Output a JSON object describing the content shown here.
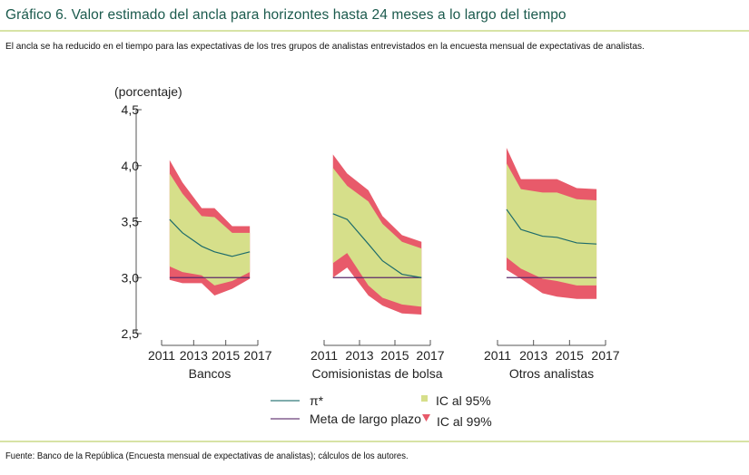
{
  "header": {
    "title": "Gráfico 6. Valor estimado del ancla para horizontes hasta 24 meses a lo largo del tiempo",
    "subtitle": "El ancla se ha reducido en el tiempo para las expectativas de los tres grupos de analistas entrevistados en la encuesta mensual de expectativas de analistas."
  },
  "footer": {
    "source": "Fuente: Banco de la República (Encuesta mensual de expectativas de analistas); cálculos de los autores."
  },
  "colors": {
    "ic95": "#d6df8a",
    "ic99": "#e85a6a",
    "pi_star": "#1d6b6b",
    "meta": "#5a2a6a",
    "axis": "#555555",
    "title": "#1b5a4d",
    "rule": "#d7e3a5"
  },
  "chart_data": {
    "type": "area",
    "ylabel": "(porcentaje)",
    "ylim": [
      2.5,
      4.5
    ],
    "yticks": [
      2.5,
      3.0,
      3.5,
      4.0,
      4.5
    ],
    "ytick_labels": [
      "2,5",
      "3,0",
      "3,5",
      "4,0",
      "4,5"
    ],
    "xlim": [
      2011,
      2017
    ],
    "xticks": [
      2011,
      2013,
      2015,
      2017
    ],
    "xtick_labels": [
      "2011",
      "2013",
      "2015",
      "2017"
    ],
    "x": [
      2011.5,
      2012.3,
      2013.5,
      2014.3,
      2015.4,
      2016.5
    ],
    "meta_largo_plazo": 3.0,
    "legend": {
      "position": "bottom",
      "items": [
        {
          "key": "pi_star",
          "label": "π*",
          "kind": "line"
        },
        {
          "key": "ic95",
          "label": "IC al 95%",
          "kind": "square"
        },
        {
          "key": "meta",
          "label": "Meta de largo plazo",
          "kind": "line"
        },
        {
          "key": "ic99",
          "label": "IC al 99%",
          "kind": "triangle"
        }
      ]
    },
    "panels": [
      {
        "name": "Bancos",
        "pi_star": [
          3.52,
          3.4,
          3.28,
          3.23,
          3.19,
          3.23
        ],
        "ic95_upper": [
          3.93,
          3.75,
          3.55,
          3.54,
          3.4,
          3.4
        ],
        "ic95_lower": [
          3.1,
          3.05,
          3.02,
          2.93,
          2.97,
          3.05
        ],
        "ic99_upper": [
          4.05,
          3.85,
          3.62,
          3.62,
          3.46,
          3.46
        ],
        "ic99_lower": [
          2.98,
          2.95,
          2.95,
          2.84,
          2.9,
          2.99
        ]
      },
      {
        "name": "Comisionistas de bolsa",
        "pi_star": [
          3.57,
          3.52,
          3.3,
          3.15,
          3.03,
          3.0
        ],
        "ic95_upper": [
          3.98,
          3.82,
          3.68,
          3.48,
          3.32,
          3.26
        ],
        "ic95_lower": [
          3.13,
          3.22,
          2.93,
          2.82,
          2.76,
          2.74
        ],
        "ic99_upper": [
          4.1,
          3.93,
          3.78,
          3.55,
          3.38,
          3.32
        ],
        "ic99_lower": [
          3.0,
          3.09,
          2.84,
          2.75,
          2.68,
          2.67
        ]
      },
      {
        "name": "Otros analistas",
        "pi_star": [
          3.61,
          3.43,
          3.37,
          3.36,
          3.31,
          3.3
        ],
        "ic95_upper": [
          4.02,
          3.79,
          3.76,
          3.76,
          3.7,
          3.69
        ],
        "ic95_lower": [
          3.18,
          3.08,
          2.99,
          2.97,
          2.93,
          2.93
        ],
        "ic99_upper": [
          4.16,
          3.88,
          3.88,
          3.88,
          3.8,
          3.79
        ],
        "ic99_lower": [
          3.07,
          2.99,
          2.86,
          2.83,
          2.81,
          2.81
        ]
      }
    ]
  }
}
